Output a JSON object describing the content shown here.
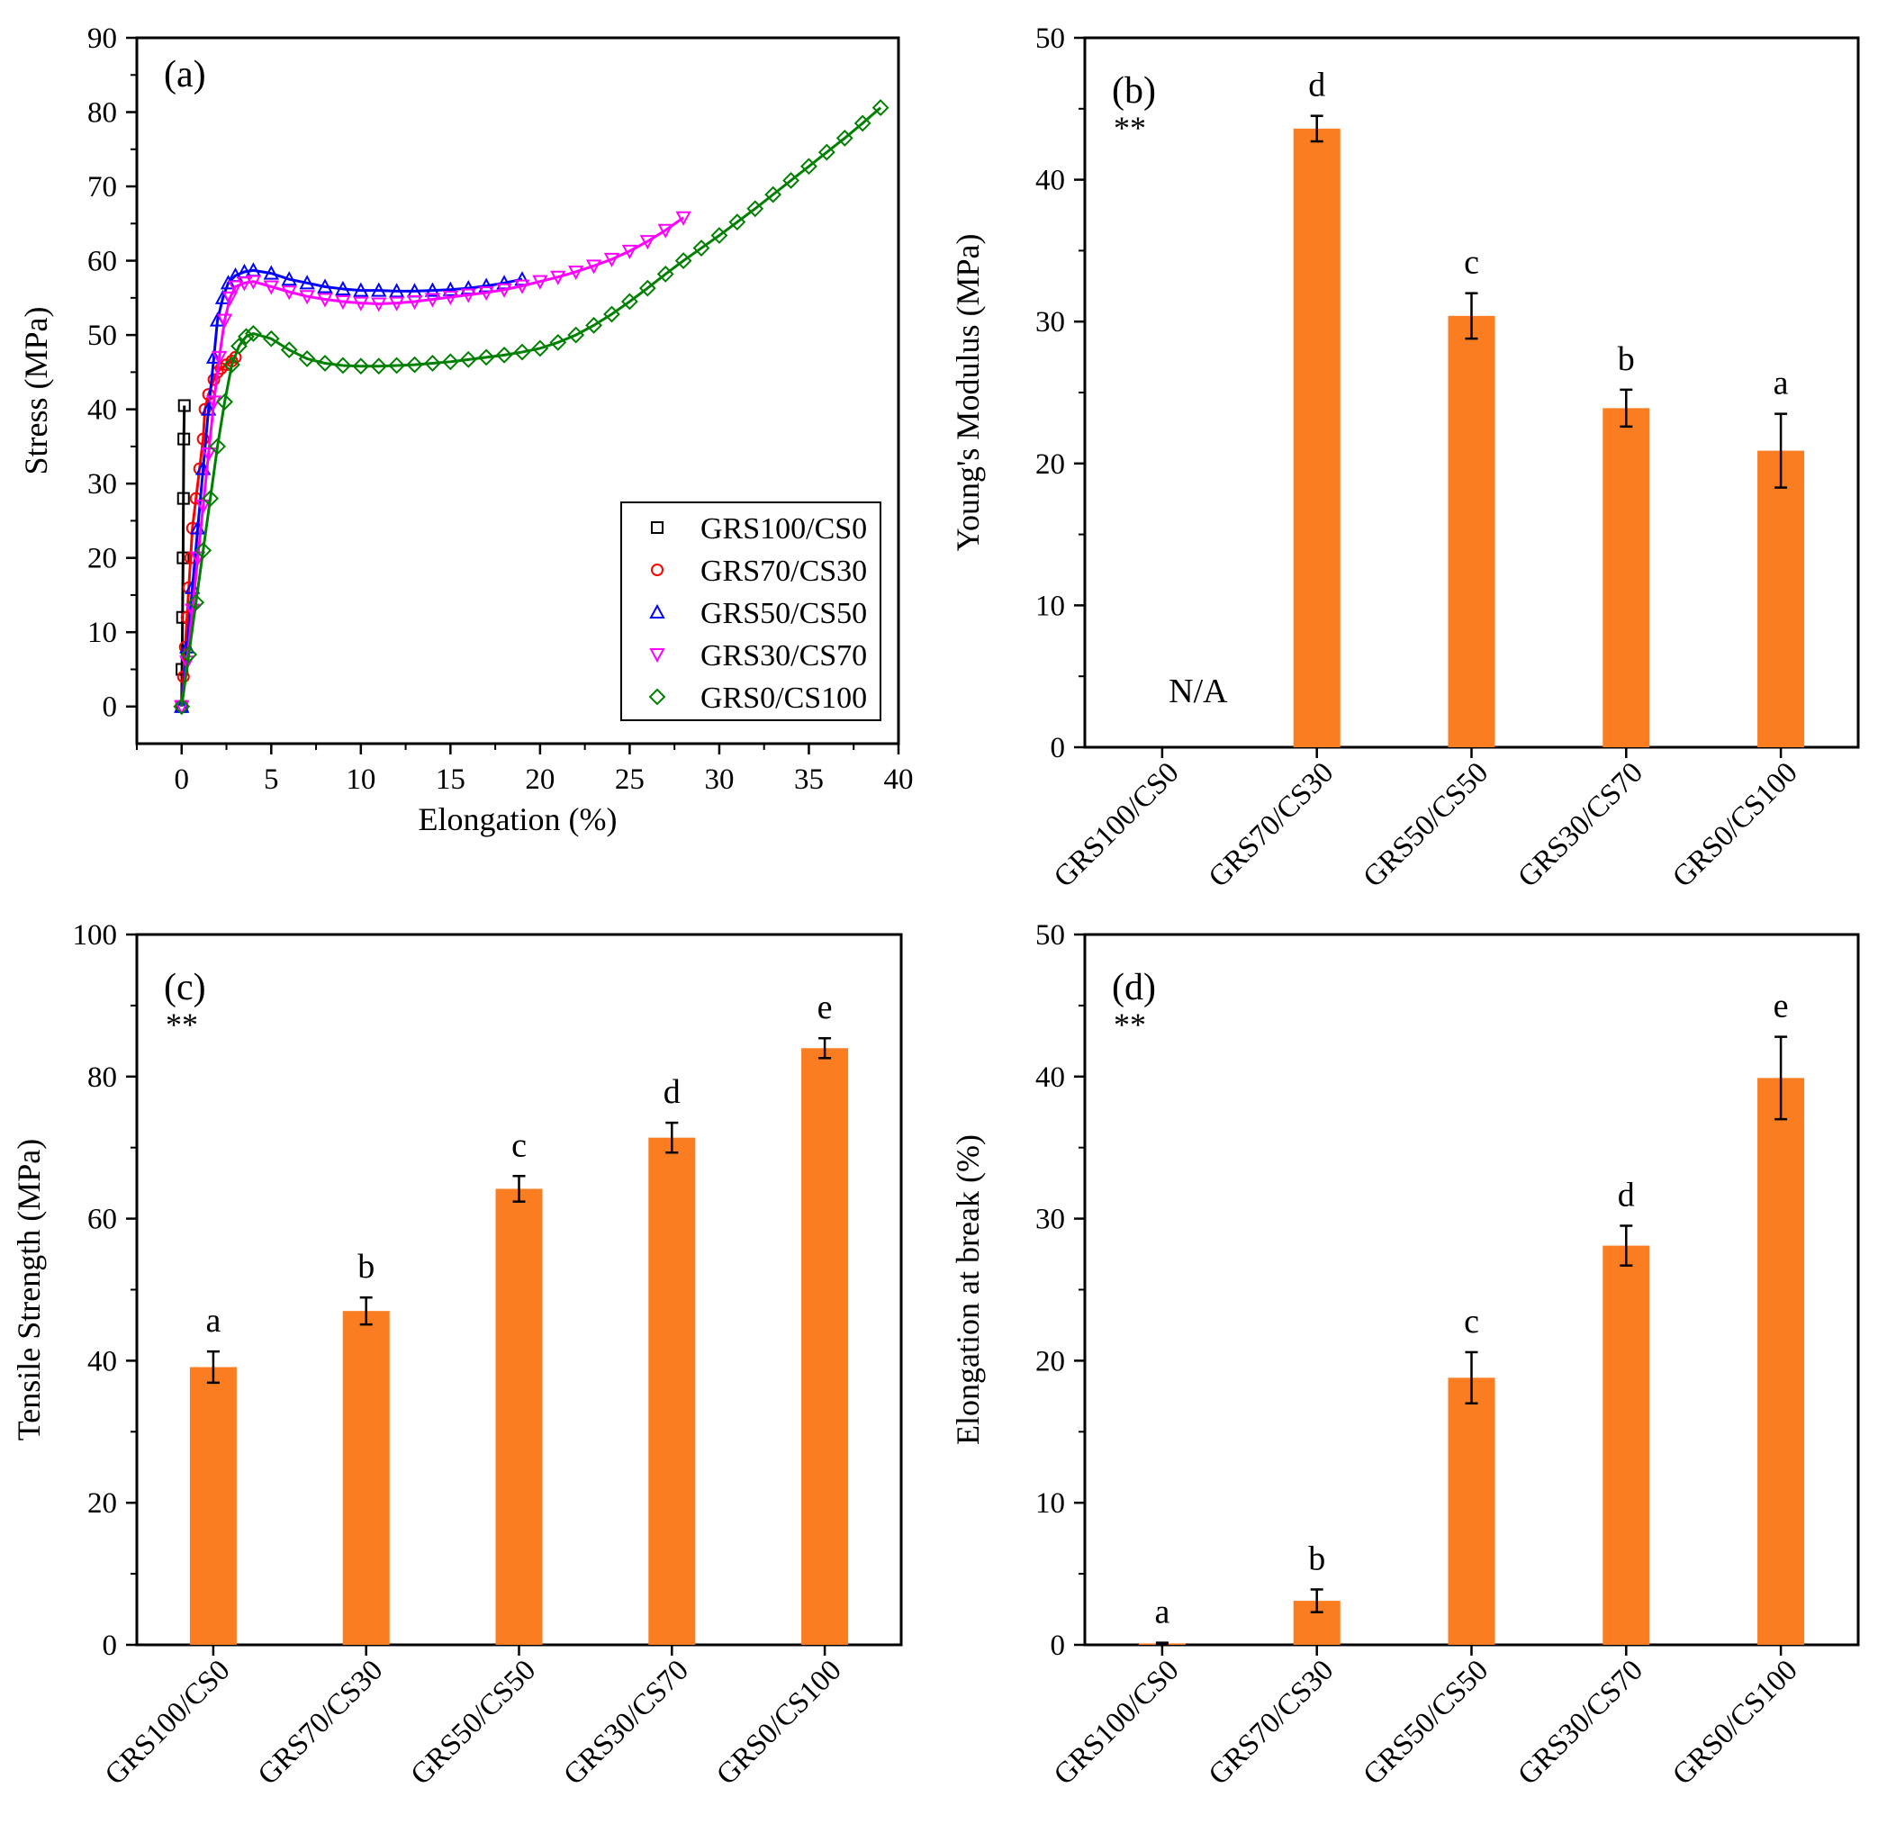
{
  "figure": {
    "colors": {
      "bar": "#fb7d22",
      "axis": "#000000",
      "series": [
        "#000000",
        "#ff0000",
        "#0000ff",
        "#ff00ff",
        "#008000"
      ]
    }
  },
  "chart_data": [
    {
      "id": "a",
      "type": "scatter",
      "panel_label": "(a)",
      "xlabel": "Elongation (%)",
      "ylabel": "Stress (MPa)",
      "xlim": [
        -2.5,
        40
      ],
      "ylim": [
        -5,
        90
      ],
      "xticks": [
        0,
        5,
        10,
        15,
        20,
        25,
        30,
        35,
        40
      ],
      "yticks": [
        0,
        10,
        20,
        30,
        40,
        50,
        60,
        70,
        80,
        90
      ],
      "legend": {
        "placement": "bottom-right",
        "entries": [
          "GRS100/CS0",
          "GRS70/CS30",
          "GRS50/CS50",
          "GRS30/CS70",
          "GRS0/CS100"
        ]
      },
      "series": [
        {
          "name": "GRS100/CS0",
          "marker": "square",
          "x": [
            0,
            0.02,
            0.05,
            0.08,
            0.1,
            0.12,
            0.15
          ],
          "y": [
            0,
            5,
            12,
            20,
            28,
            36,
            40.5
          ]
        },
        {
          "name": "GRS70/CS30",
          "marker": "circle",
          "x": [
            0,
            0.1,
            0.2,
            0.3,
            0.4,
            0.5,
            0.6,
            0.8,
            1.0,
            1.2,
            1.3,
            1.5,
            1.8,
            2.0,
            2.2,
            2.5,
            2.8,
            3.0
          ],
          "y": [
            0,
            4,
            8,
            12,
            16,
            20,
            24,
            28,
            32,
            36,
            40,
            42,
            44,
            45,
            45.5,
            46,
            46.5,
            47
          ]
        },
        {
          "name": "GRS50/CS50",
          "marker": "triangle-up",
          "x": [
            0,
            0.3,
            0.6,
            0.9,
            1.2,
            1.5,
            1.8,
            2.0,
            2.3,
            2.6,
            3,
            3.5,
            4,
            5,
            6,
            7,
            8,
            9,
            10,
            11,
            12,
            13,
            14,
            15,
            16,
            17,
            18,
            19
          ],
          "y": [
            0,
            8,
            16,
            24,
            32,
            40,
            47,
            52,
            55,
            57,
            58,
            58.5,
            58.7,
            58.3,
            57.5,
            57,
            56.5,
            56.2,
            56,
            56,
            55.9,
            55.9,
            56,
            56.1,
            56.3,
            56.6,
            57,
            57.5
          ]
        },
        {
          "name": "GRS30/CS70",
          "marker": "triangle-down",
          "x": [
            0,
            0.3,
            0.6,
            0.9,
            1.2,
            1.5,
            1.8,
            2.1,
            2.4,
            2.7,
            3,
            3.5,
            4,
            5,
            6,
            7,
            8,
            9,
            10,
            11,
            12,
            13,
            14,
            15,
            16,
            17,
            18,
            19,
            20,
            21,
            22,
            23,
            24,
            25,
            26,
            27,
            28
          ],
          "y": [
            0,
            6,
            13,
            20,
            27,
            34,
            41,
            47,
            52,
            55,
            56.5,
            57,
            57.2,
            56.5,
            55.8,
            55.2,
            54.8,
            54.5,
            54.3,
            54.2,
            54.3,
            54.5,
            54.8,
            55.1,
            55.4,
            55.7,
            56.1,
            56.6,
            57.2,
            57.8,
            58.5,
            59.3,
            60.2,
            61.3,
            62.6,
            64.1,
            65.8
          ]
        },
        {
          "name": "GRS0/CS100",
          "marker": "diamond",
          "x": [
            0,
            0.4,
            0.8,
            1.2,
            1.6,
            2.0,
            2.4,
            2.8,
            3.2,
            3.6,
            4,
            5,
            6,
            7,
            8,
            9,
            10,
            11,
            12,
            13,
            14,
            15,
            16,
            17,
            18,
            19,
            20,
            21,
            22,
            23,
            24,
            25,
            26,
            27,
            28,
            29,
            30,
            31,
            32,
            33,
            34,
            35,
            36,
            37,
            38,
            39
          ],
          "y": [
            0,
            7,
            14,
            21,
            28,
            35,
            41,
            46,
            48.5,
            49.8,
            50.2,
            49.5,
            48,
            46.8,
            46.2,
            45.9,
            45.8,
            45.8,
            45.9,
            46,
            46.2,
            46.4,
            46.7,
            47,
            47.3,
            47.7,
            48.2,
            49,
            50,
            51.3,
            52.8,
            54.5,
            56.3,
            58.2,
            60,
            61.7,
            63.4,
            65.2,
            67,
            68.9,
            70.8,
            72.7,
            74.6,
            76.5,
            78.5,
            80.6
          ]
        }
      ]
    },
    {
      "id": "b",
      "type": "bar",
      "panel_label": "(b)",
      "significance": "**",
      "note": "N/A",
      "xlabel": "",
      "ylabel": "Young's Modulus (MPa)",
      "categories": [
        "GRS100/CS0",
        "GRS70/CS30",
        "GRS50/CS50",
        "GRS30/CS70",
        "GRS0/CS100"
      ],
      "values": [
        null,
        43.6,
        30.4,
        23.9,
        20.9
      ],
      "errors": [
        null,
        0.9,
        1.6,
        1.3,
        2.6
      ],
      "letters": [
        "",
        "d",
        "c",
        "b",
        "a"
      ],
      "ylim": [
        0,
        50
      ],
      "yticks": [
        0,
        10,
        20,
        30,
        40,
        50
      ]
    },
    {
      "id": "c",
      "type": "bar",
      "panel_label": "(c)",
      "significance": "**",
      "xlabel": "",
      "ylabel": "Tensile Strength (MPa)",
      "categories": [
        "GRS100/CS0",
        "GRS70/CS30",
        "GRS50/CS50",
        "GRS30/CS70",
        "GRS0/CS100"
      ],
      "values": [
        39.1,
        47.0,
        64.2,
        71.4,
        84.0
      ],
      "errors": [
        2.2,
        1.9,
        1.8,
        2.1,
        1.4
      ],
      "letters": [
        "a",
        "b",
        "c",
        "d",
        "e"
      ],
      "ylim": [
        0,
        100
      ],
      "yticks": [
        0,
        20,
        40,
        60,
        80,
        100
      ]
    },
    {
      "id": "d",
      "type": "bar",
      "panel_label": "(d)",
      "significance": "**",
      "xlabel": "",
      "ylabel": "Elongation at break (%)",
      "categories": [
        "GRS100/CS0",
        "GRS70/CS30",
        "GRS50/CS50",
        "GRS30/CS70",
        "GRS0/CS100"
      ],
      "values": [
        0.1,
        3.1,
        18.8,
        28.1,
        39.9
      ],
      "errors": [
        0.05,
        0.8,
        1.8,
        1.4,
        2.9
      ],
      "letters": [
        "a",
        "b",
        "c",
        "d",
        "e"
      ],
      "ylim": [
        0,
        50
      ],
      "yticks": [
        0,
        10,
        20,
        30,
        40,
        50
      ]
    }
  ]
}
